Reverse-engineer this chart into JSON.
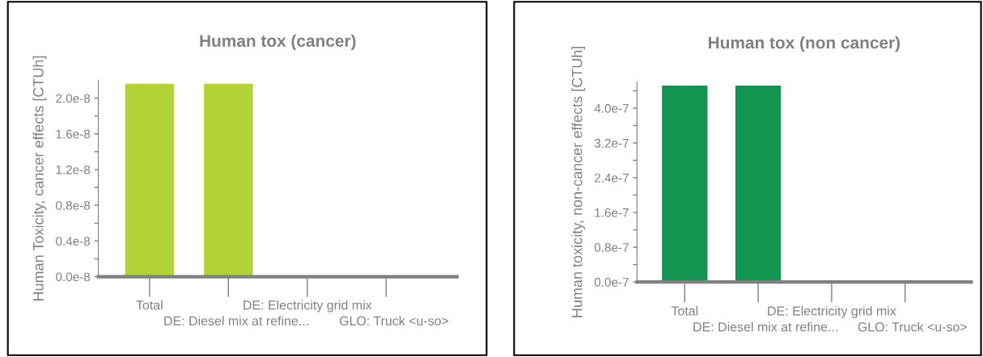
{
  "chart_data": [
    {
      "type": "bar",
      "title": "Human tox (cancer)",
      "ylabel": "Human Toxicity, cancer effects [CTUh]",
      "categories": [
        "Total",
        "DE: Diesel mix at refine...",
        "DE: Electricity grid mix",
        "GLO: Truck <u-so>"
      ],
      "values": [
        2.16e-08,
        2.16e-08,
        0,
        0
      ],
      "color": "#b2d235",
      "ylim": [
        0,
        2.2e-08
      ],
      "yticks": [
        {
          "value": 0,
          "label": "0.0e-8"
        },
        {
          "value": 2e-09,
          "label": null
        },
        {
          "value": 4e-09,
          "label": "0.4e-8"
        },
        {
          "value": 6e-09,
          "label": null
        },
        {
          "value": 8e-09,
          "label": "0.8e-8"
        },
        {
          "value": 1e-08,
          "label": null
        },
        {
          "value": 1.2e-08,
          "label": "1.2e-8"
        },
        {
          "value": 1.4e-08,
          "label": null
        },
        {
          "value": 1.6e-08,
          "label": "1.6e-8"
        },
        {
          "value": 1.8e-08,
          "label": null
        },
        {
          "value": 2e-08,
          "label": "2.0e-8"
        }
      ],
      "grid": false,
      "legend": false
    },
    {
      "type": "bar",
      "title": "Human tox (non cancer)",
      "ylabel": "Human toxicity, non-cancer effects [CTUh]",
      "categories": [
        "Total",
        "DE: Diesel mix at refine...",
        "DE: Electricity grid mix",
        "GLO: Truck <u-so>"
      ],
      "values": [
        4.52e-07,
        4.52e-07,
        0,
        0
      ],
      "color": "#139552",
      "ylim": [
        0,
        4.6e-07
      ],
      "yticks": [
        {
          "value": 0,
          "label": "0.0e-7"
        },
        {
          "value": 4e-08,
          "label": null
        },
        {
          "value": 8e-08,
          "label": "0.8e-7"
        },
        {
          "value": 1.2e-07,
          "label": null
        },
        {
          "value": 1.6e-07,
          "label": "1.6e-7"
        },
        {
          "value": 2e-07,
          "label": null
        },
        {
          "value": 2.4e-07,
          "label": "2.4e-7"
        },
        {
          "value": 2.8e-07,
          "label": null
        },
        {
          "value": 3.2e-07,
          "label": "3.2e-7"
        },
        {
          "value": 3.6e-07,
          "label": null
        },
        {
          "value": 4e-07,
          "label": "4.0e-7"
        },
        {
          "value": 4.4e-07,
          "label": null
        }
      ],
      "grid": false,
      "legend": false
    }
  ]
}
